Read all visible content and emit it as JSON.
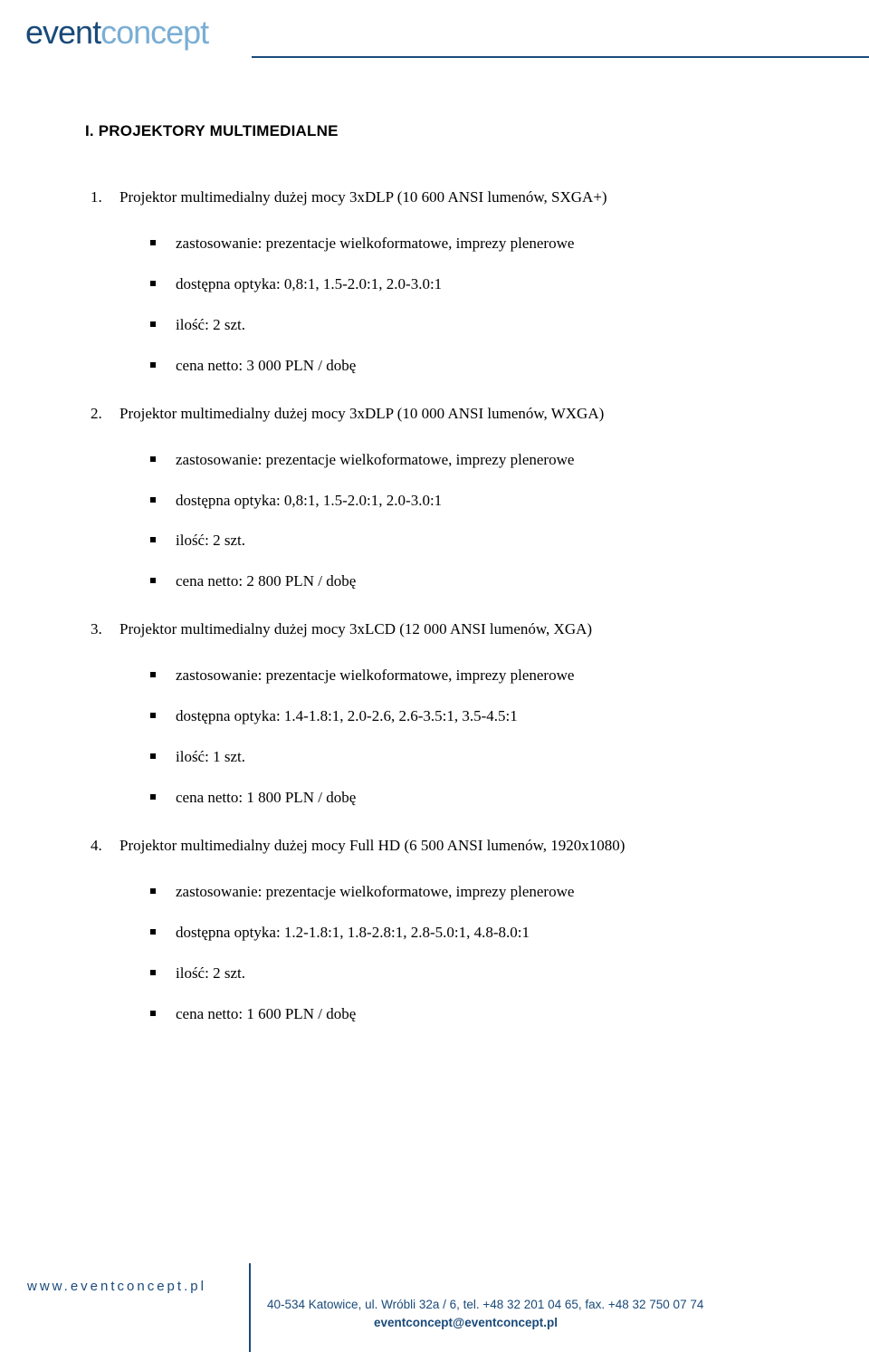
{
  "brand": {
    "part1": "event",
    "part2": "concept",
    "header_line_color": "#1a4a7a",
    "text_color_primary": "#1a4a7a",
    "text_color_secondary": "#7aaed4"
  },
  "sectionTitle": "I. PROJEKTORY MULTIMEDIALNE",
  "items": [
    {
      "title": "Projektor multimedialny dużej mocy 3xDLP (10 600 ANSI lumenów, SXGA+)",
      "specs": [
        "zastosowanie: prezentacje wielkoformatowe, imprezy plenerowe",
        "dostępna optyka: 0,8:1, 1.5-2.0:1, 2.0-3.0:1",
        "ilość: 2 szt.",
        "cena netto: 3 000 PLN / dobę"
      ]
    },
    {
      "title": "Projektor multimedialny dużej mocy 3xDLP (10 000 ANSI lumenów, WXGA)",
      "specs": [
        "zastosowanie: prezentacje wielkoformatowe, imprezy plenerowe",
        "dostępna optyka: 0,8:1, 1.5-2.0:1, 2.0-3.0:1",
        "ilość: 2 szt.",
        "cena netto: 2 800 PLN / dobę"
      ]
    },
    {
      "title": "Projektor multimedialny dużej mocy 3xLCD (12 000 ANSI lumenów, XGA)",
      "specs": [
        "zastosowanie: prezentacje wielkoformatowe, imprezy plenerowe",
        "dostępna optyka: 1.4-1.8:1, 2.0-2.6, 2.6-3.5:1, 3.5-4.5:1",
        "ilość: 1 szt.",
        "cena netto: 1 800 PLN / dobę"
      ]
    },
    {
      "title": "Projektor multimedialny dużej mocy Full HD (6 500 ANSI lumenów, 1920x1080)",
      "specs": [
        "zastosowanie: prezentacje wielkoformatowe, imprezy plenerowe",
        "dostępna optyka: 1.2-1.8:1, 1.8-2.8:1, 2.8-5.0:1, 4.8-8.0:1",
        "ilość: 2 szt.",
        "cena netto: 1 600 PLN / dobę"
      ]
    }
  ],
  "footer": {
    "url": "www.eventconcept.pl",
    "address": "40-534 Katowice, ul. Wróbli 32a / 6, tel. +48 32 201 04 65, fax. +48 32 750 07 74",
    "email": "eventconcept@eventconcept.pl"
  }
}
